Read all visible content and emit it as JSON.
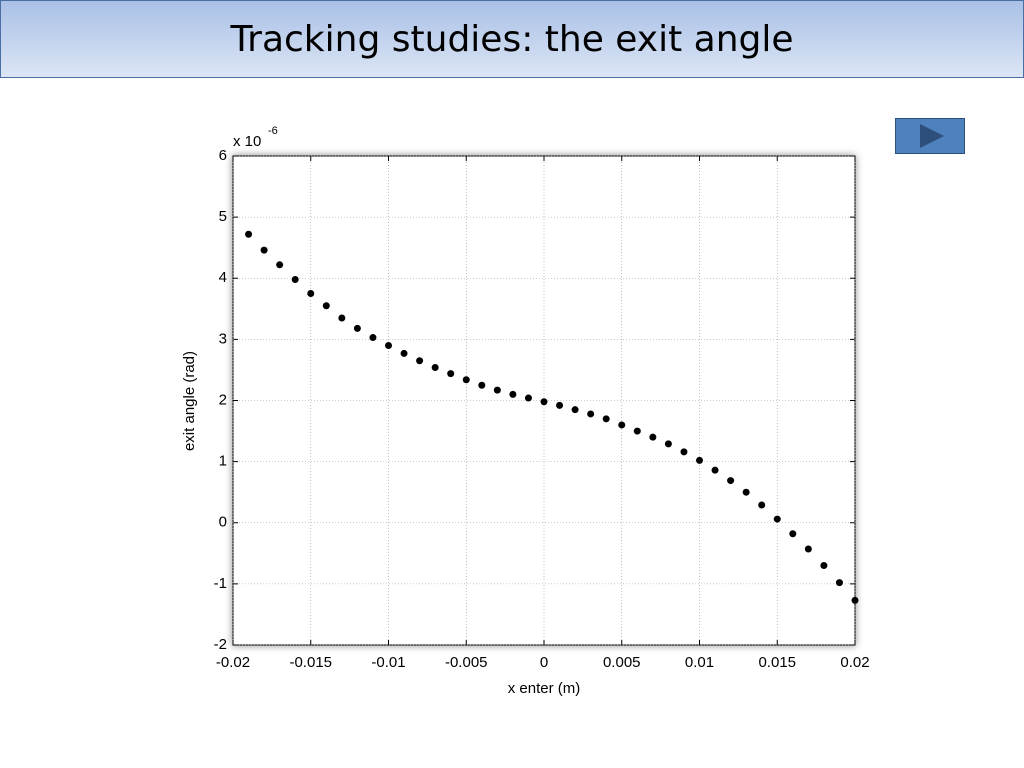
{
  "header": {
    "title": "Tracking studies: the exit angle"
  },
  "chart_data": {
    "type": "scatter",
    "xlabel": "x enter (m)",
    "ylabel": "exit angle (rad)",
    "y_multiplier": {
      "base": "x 10",
      "exponent": "-6"
    },
    "x": [
      -0.019,
      -0.018,
      -0.017,
      -0.016,
      -0.015,
      -0.014,
      -0.013,
      -0.012,
      -0.011,
      -0.01,
      -0.009,
      -0.008,
      -0.007,
      -0.006,
      -0.005,
      -0.004,
      -0.003,
      -0.002,
      -0.001,
      0,
      0.001,
      0.002,
      0.003,
      0.004,
      0.005,
      0.006,
      0.007,
      0.008,
      0.009,
      0.01,
      0.011,
      0.012,
      0.013,
      0.014,
      0.015,
      0.016,
      0.017,
      0.018,
      0.019,
      0.02
    ],
    "values": [
      4.72,
      4.46,
      4.22,
      3.98,
      3.75,
      3.55,
      3.35,
      3.18,
      3.03,
      2.9,
      2.77,
      2.65,
      2.54,
      2.44,
      2.34,
      2.25,
      2.17,
      2.1,
      2.04,
      1.98,
      1.92,
      1.85,
      1.78,
      1.7,
      1.6,
      1.5,
      1.4,
      1.29,
      1.16,
      1.02,
      0.86,
      0.69,
      0.5,
      0.29,
      0.06,
      -0.18,
      -0.43,
      -0.7,
      -0.98,
      -1.27
    ],
    "color": "#000000",
    "xlim": [
      -0.02,
      0.02
    ],
    "xticks": [
      -0.02,
      -0.015,
      -0.01,
      -0.005,
      0,
      0.005,
      0.01,
      0.015,
      0.02
    ],
    "ylim": [
      -2,
      6
    ],
    "yticks": [
      -2,
      -1,
      0,
      1,
      2,
      3,
      4,
      5,
      6
    ],
    "grid": true
  }
}
